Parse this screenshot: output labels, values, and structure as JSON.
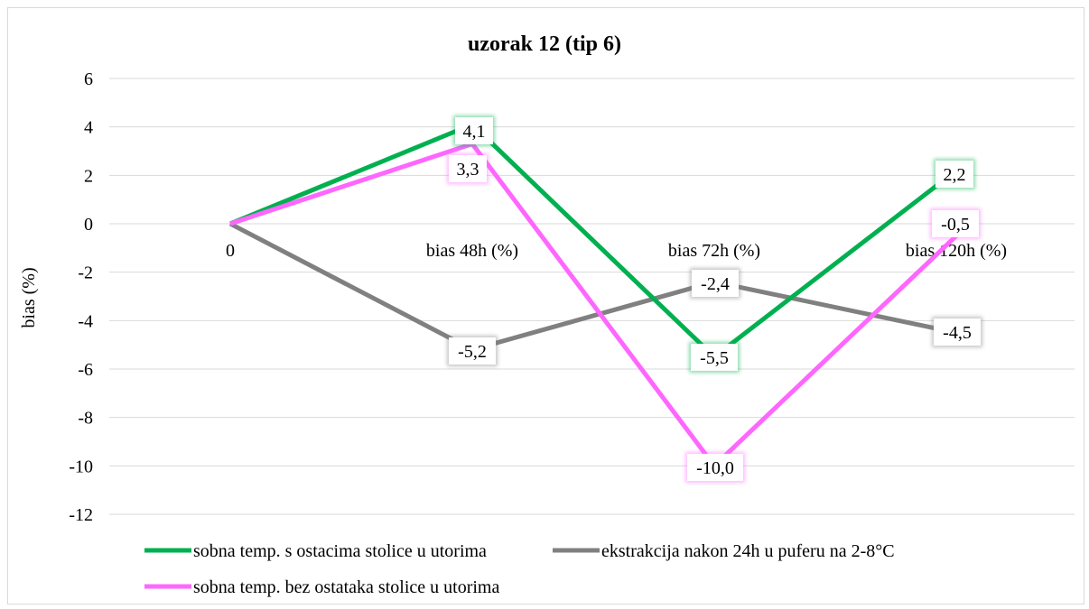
{
  "chart_data": {
    "type": "line",
    "title": "uzorak  12 (tip 6)",
    "xlabel": "",
    "ylabel": "bias (%)",
    "categories": [
      "0",
      "bias 48h (%)",
      "bias 72h (%)",
      "bias 120h (%)"
    ],
    "ylim": [
      -12,
      6
    ],
    "yticks": [
      6,
      4,
      2,
      0,
      -2,
      -4,
      -6,
      -8,
      -10,
      -12
    ],
    "grid": true,
    "legend_position": "bottom",
    "series": [
      {
        "name": "sobna temp. s ostacima stolice u utorima",
        "values": [
          0,
          4.1,
          -5.5,
          2.2
        ],
        "labels": [
          "",
          "4,1",
          "-5,5",
          "2,2"
        ],
        "color": "#00b050"
      },
      {
        "name": "ekstrakcija nakon 24h u puferu na 2-8°C",
        "values": [
          0,
          -5.2,
          -2.4,
          -4.5
        ],
        "labels": [
          "",
          "-5,2",
          "-2,4",
          "-4,5"
        ],
        "color": "#808080"
      },
      {
        "name": "sobna temp. bez ostataka stolice u utorima",
        "values": [
          0,
          3.3,
          -10.0,
          -0.5
        ],
        "labels": [
          "",
          "3,3",
          "-10,0",
          "-0,5"
        ],
        "color": "#ff66ff"
      }
    ]
  }
}
